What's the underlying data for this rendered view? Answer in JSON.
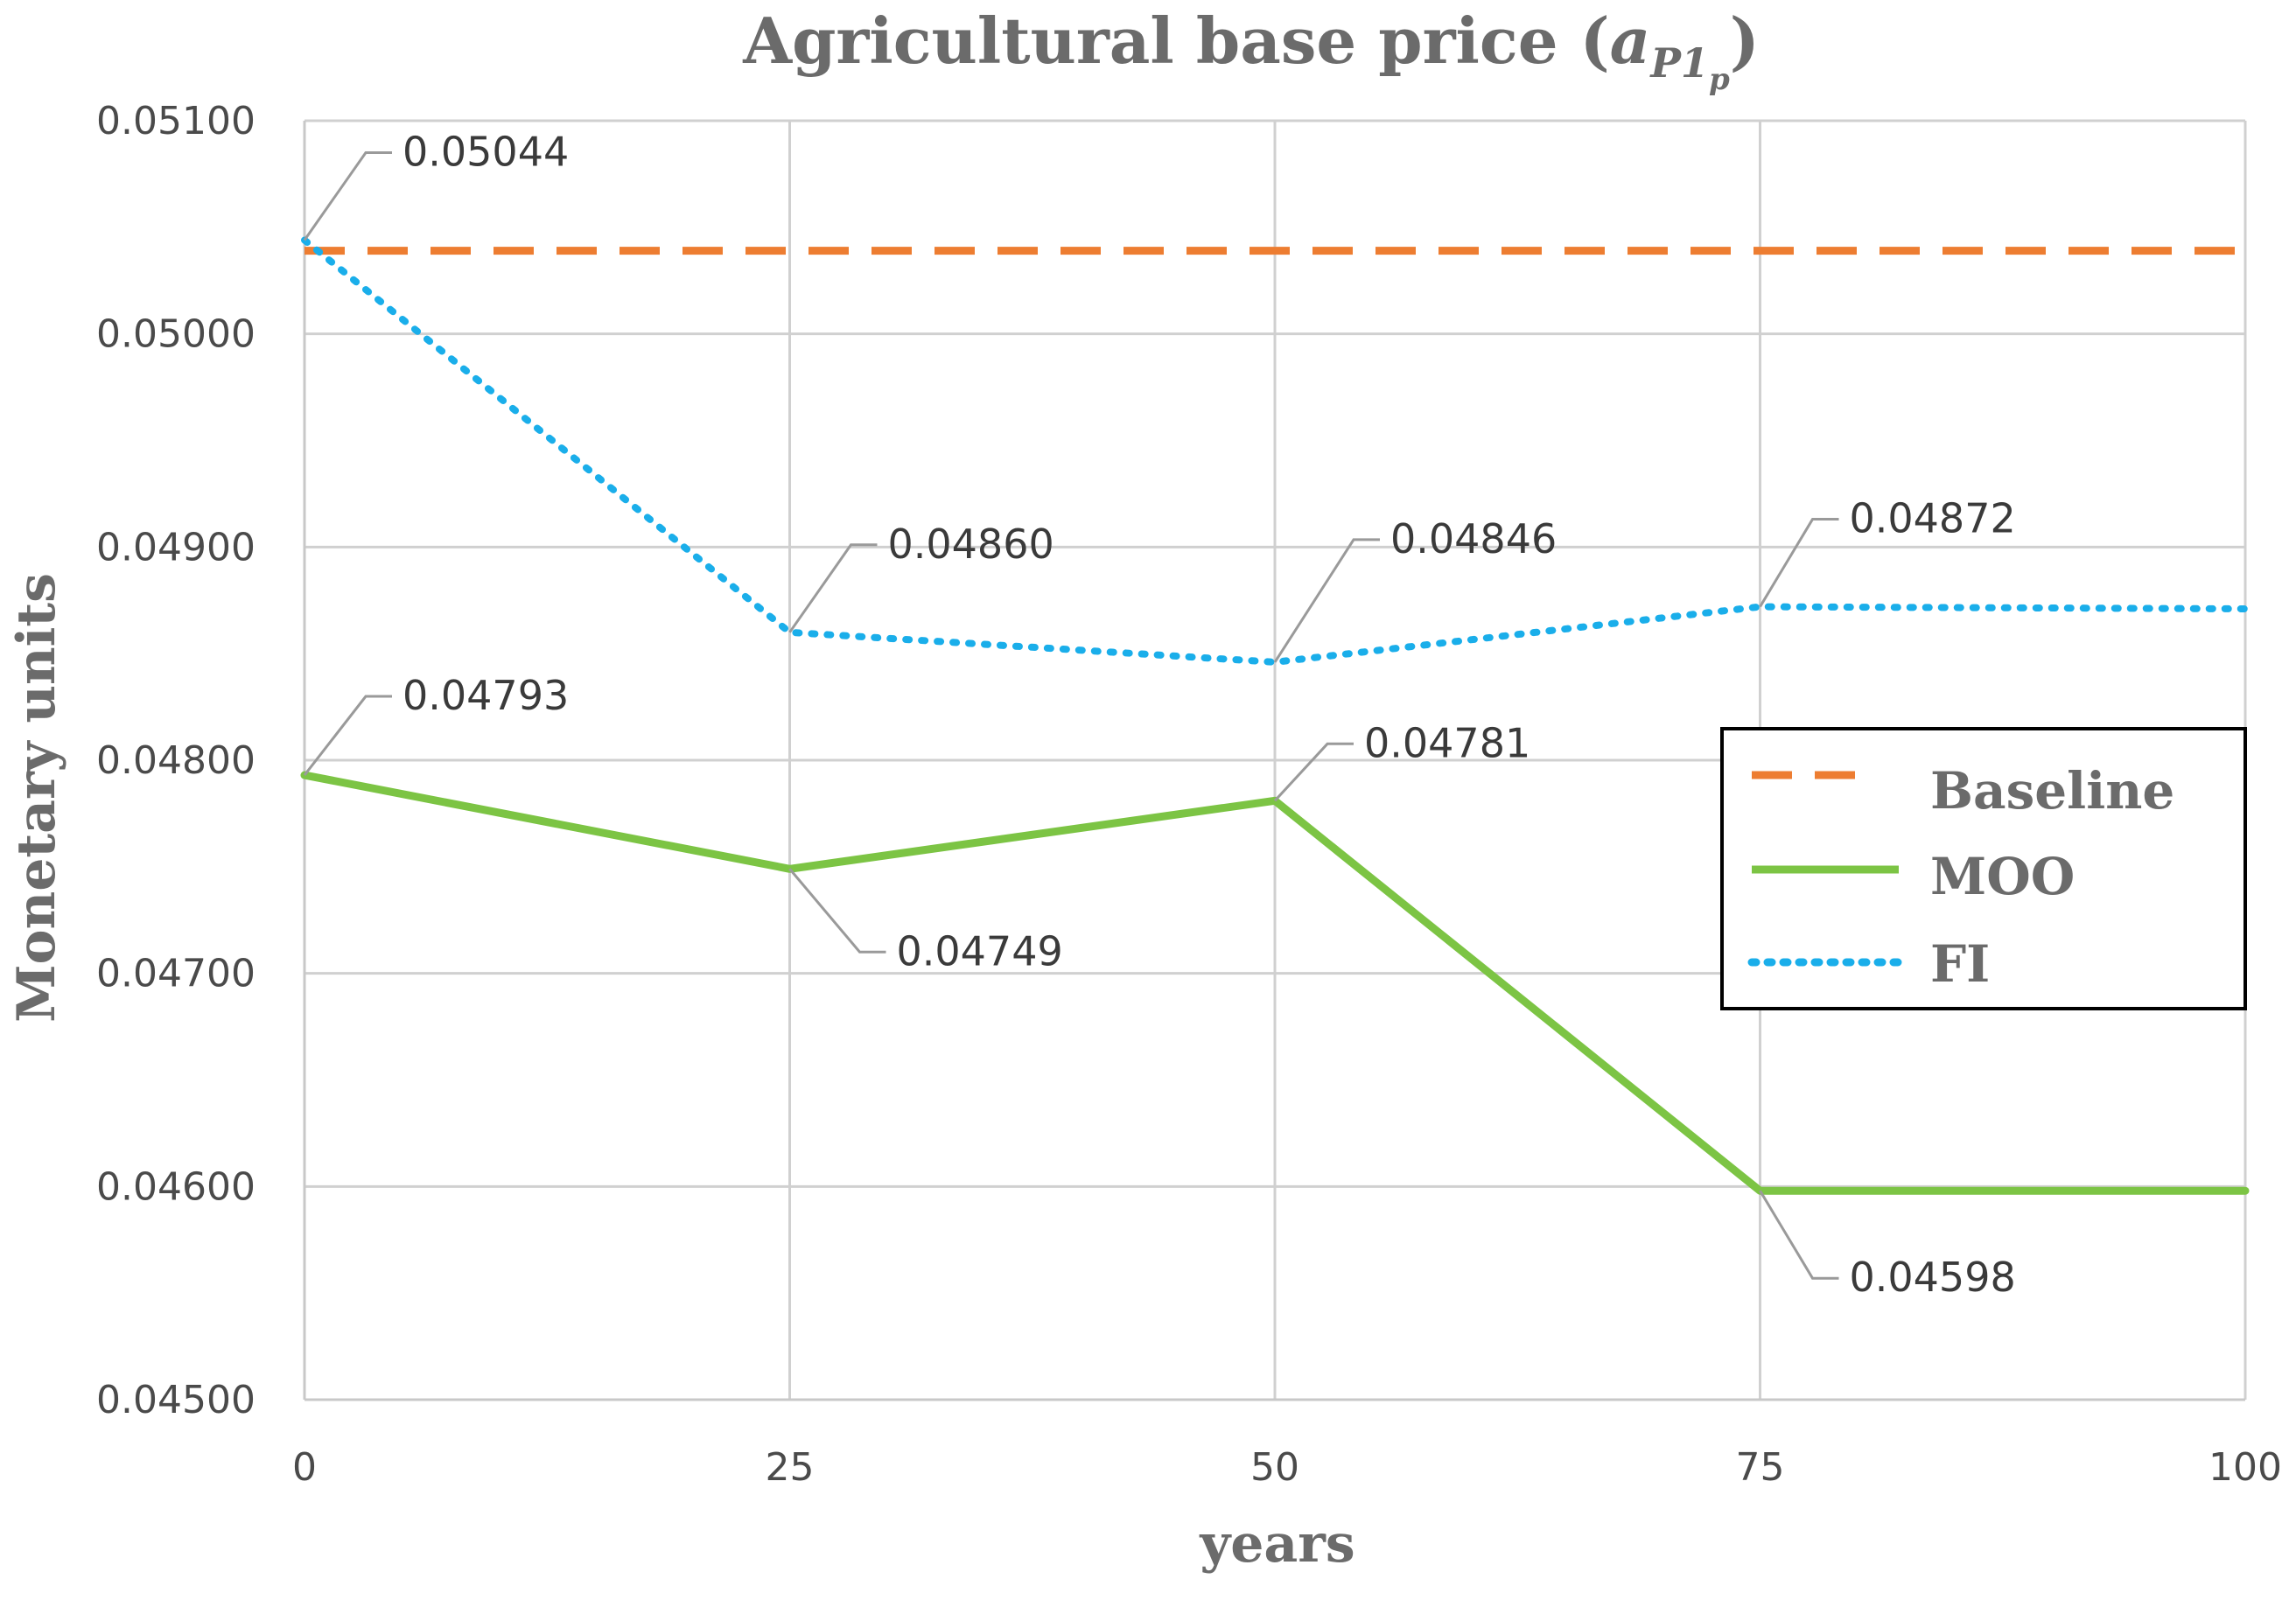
{
  "chart_data": {
    "type": "line",
    "title": "Agricultural base price (",
    "title_symbol": {
      "base": "a",
      "sub": "P1",
      "subsub": "p"
    },
    "title_close": ")",
    "xlabel": "years",
    "ylabel": "Monetary units",
    "x": [
      0,
      25,
      50,
      75,
      100
    ],
    "xlim": [
      0,
      100
    ],
    "ylim": [
      0.045,
      0.051
    ],
    "yticks": [
      "0.04500",
      "0.04600",
      "0.04700",
      "0.04800",
      "0.04900",
      "0.05000",
      "0.05100"
    ],
    "yticks_values": [
      0.045,
      0.046,
      0.047,
      0.048,
      0.049,
      0.05,
      0.051
    ],
    "xticks": [
      "0",
      "25",
      "50",
      "75",
      "100"
    ],
    "grid": true,
    "legend": "right",
    "series": [
      {
        "name": "Baseline",
        "style": "dashed",
        "color": "#ED7D31",
        "values": [
          0.05039,
          0.05039,
          0.05039,
          0.05039,
          0.05039
        ]
      },
      {
        "name": "MOO",
        "style": "solid",
        "color": "#7CC444",
        "values": [
          0.04793,
          0.04749,
          0.04781,
          0.04598,
          0.04598
        ]
      },
      {
        "name": "FI",
        "style": "dotted",
        "color": "#1AAEEA",
        "values": [
          0.05044,
          0.0486,
          0.04846,
          0.04872,
          0.04871
        ]
      }
    ],
    "annotations": [
      {
        "series": "FI",
        "x": 0,
        "text": "0.05044"
      },
      {
        "series": "FI",
        "x": 25,
        "text": "0.04860"
      },
      {
        "series": "FI",
        "x": 50,
        "text": "0.04846"
      },
      {
        "series": "FI",
        "x": 75,
        "text": "0.04872"
      },
      {
        "series": "MOO",
        "x": 0,
        "text": "0.04793"
      },
      {
        "series": "MOO",
        "x": 25,
        "text": "0.04749"
      },
      {
        "series": "MOO",
        "x": 50,
        "text": "0.04781"
      },
      {
        "series": "MOO",
        "x": 75,
        "text": "0.04598"
      }
    ]
  }
}
